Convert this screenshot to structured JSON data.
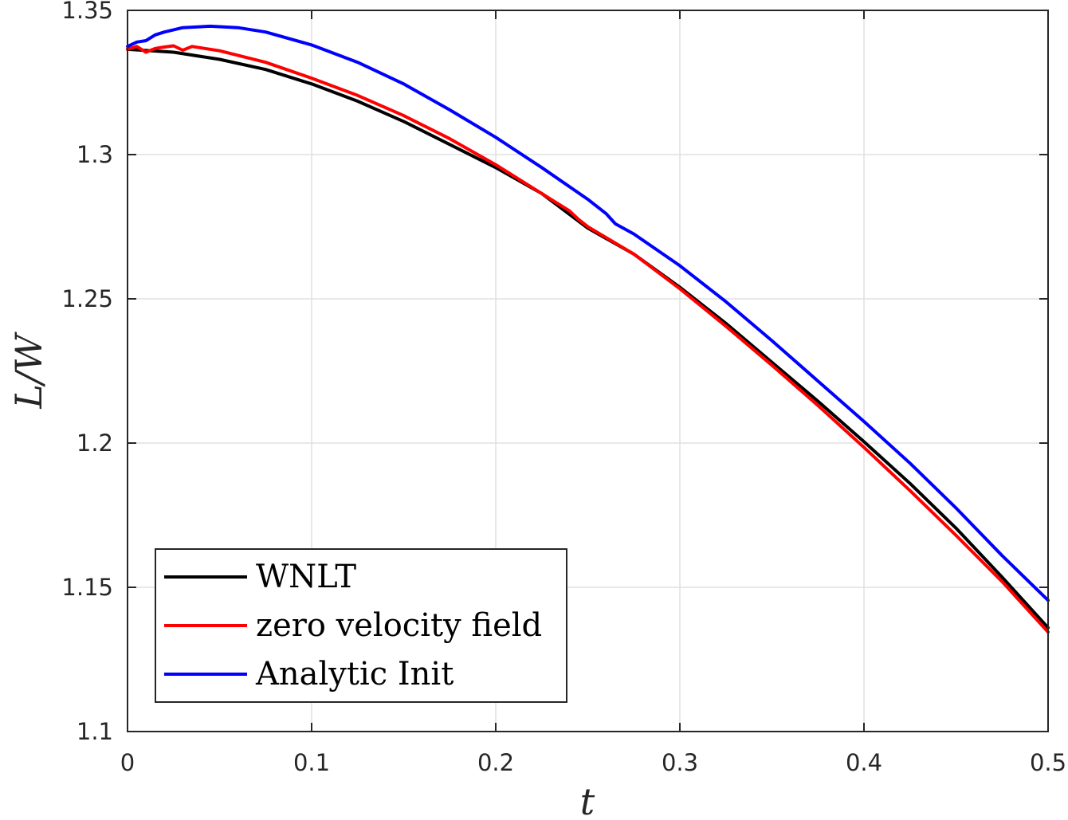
{
  "chart_data": {
    "type": "line",
    "xlabel": "t",
    "ylabel": "L/W",
    "xlim": [
      0,
      0.5
    ],
    "ylim": [
      1.1,
      1.35
    ],
    "xticks": [
      0,
      0.1,
      0.2,
      0.3,
      0.4,
      0.5
    ],
    "xtick_labels": [
      "0",
      "0.1",
      "0.2",
      "0.3",
      "0.4",
      "0.5"
    ],
    "yticks": [
      1.1,
      1.15,
      1.2,
      1.25,
      1.3,
      1.35
    ],
    "ytick_labels": [
      "1.1",
      "1.15",
      "1.2",
      "1.25",
      "1.3",
      "1.35"
    ],
    "grid": true,
    "legend_position": "bottom-left",
    "series": [
      {
        "name": "WNLT",
        "color": "#000000",
        "x": [
          0,
          0.025,
          0.05,
          0.075,
          0.1,
          0.125,
          0.15,
          0.175,
          0.2,
          0.225,
          0.25,
          0.275,
          0.3,
          0.325,
          0.35,
          0.375,
          0.4,
          0.425,
          0.45,
          0.475,
          0.5
        ],
        "y": [
          1.3365,
          1.3355,
          1.333,
          1.3295,
          1.3245,
          1.3185,
          1.3115,
          1.3035,
          1.2955,
          1.2865,
          1.2745,
          1.2655,
          1.254,
          1.2415,
          1.228,
          1.2145,
          1.2005,
          1.186,
          1.1705,
          1.1535,
          1.136
        ]
      },
      {
        "name": "zero velocity field",
        "color": "#ff0000",
        "x": [
          0,
          0.005,
          0.01,
          0.015,
          0.02,
          0.025,
          0.03,
          0.035,
          0.05,
          0.075,
          0.1,
          0.125,
          0.15,
          0.175,
          0.2,
          0.225,
          0.24,
          0.245,
          0.25,
          0.275,
          0.3,
          0.325,
          0.35,
          0.375,
          0.4,
          0.425,
          0.45,
          0.475,
          0.5
        ],
        "y": [
          1.3365,
          1.3375,
          1.3355,
          1.3368,
          1.3373,
          1.3377,
          1.3362,
          1.3375,
          1.336,
          1.332,
          1.3265,
          1.3205,
          1.3135,
          1.3055,
          1.2965,
          1.2865,
          1.2805,
          1.2775,
          1.275,
          1.2655,
          1.2535,
          1.2405,
          1.227,
          1.213,
          1.1985,
          1.1835,
          1.168,
          1.152,
          1.1345
        ]
      },
      {
        "name": "Analytic Init",
        "color": "#0000ff",
        "x": [
          0,
          0.005,
          0.01,
          0.015,
          0.02,
          0.03,
          0.045,
          0.06,
          0.075,
          0.1,
          0.125,
          0.15,
          0.175,
          0.2,
          0.225,
          0.25,
          0.26,
          0.265,
          0.275,
          0.3,
          0.325,
          0.35,
          0.375,
          0.4,
          0.425,
          0.45,
          0.475,
          0.5
        ],
        "y": [
          1.3375,
          1.339,
          1.3395,
          1.3415,
          1.3425,
          1.344,
          1.3445,
          1.344,
          1.3425,
          1.338,
          1.332,
          1.3245,
          1.3155,
          1.306,
          1.2955,
          1.2845,
          1.2795,
          1.276,
          1.2725,
          1.2615,
          1.249,
          1.2355,
          1.2215,
          1.2075,
          1.193,
          1.1775,
          1.161,
          1.1455
        ]
      }
    ]
  }
}
